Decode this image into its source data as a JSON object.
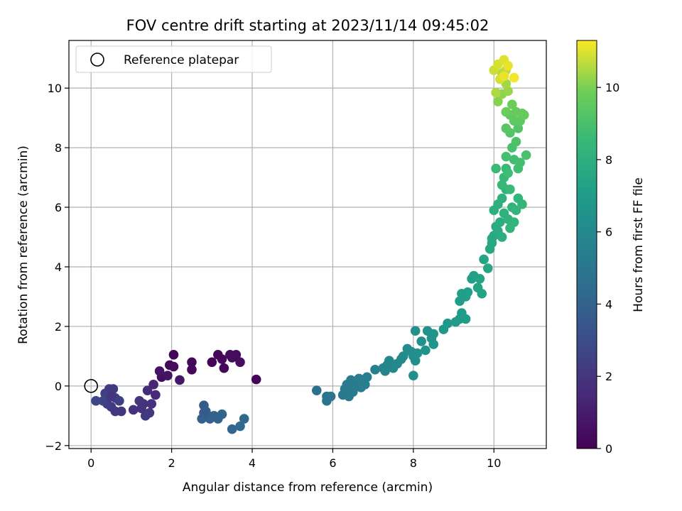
{
  "chart_data": {
    "type": "scatter",
    "title": "FOV centre drift starting at 2023/11/14 09:45:02",
    "xlabel": "Angular distance from reference (arcmin)",
    "ylabel": "Rotation from reference (arcmin)",
    "xlim": [
      -0.55,
      11.3
    ],
    "ylim": [
      -2.1,
      11.6
    ],
    "xticks": [
      0,
      2,
      4,
      6,
      8,
      10
    ],
    "yticks": [
      -2,
      0,
      2,
      4,
      6,
      8,
      10
    ],
    "grid": true,
    "colormap": "viridis",
    "colorbar": {
      "label": "Hours from first FF file",
      "range": [
        0,
        11.3
      ],
      "ticks": [
        0,
        2,
        4,
        6,
        8,
        10
      ]
    },
    "legend": {
      "placement": "top-left",
      "entries": [
        {
          "label": "Reference platepar",
          "marker": "open-circle"
        }
      ]
    },
    "reference_point": {
      "x": 0,
      "y": 0
    },
    "points": [
      {
        "x": 2.05,
        "y": 1.05,
        "c": 0.1
      },
      {
        "x": 1.95,
        "y": 0.7,
        "c": 0.3
      },
      {
        "x": 2.05,
        "y": 0.65,
        "c": 0.4
      },
      {
        "x": 1.75,
        "y": 0.3,
        "c": 0.5
      },
      {
        "x": 1.9,
        "y": 0.35,
        "c": 0.6
      },
      {
        "x": 1.7,
        "y": 0.5,
        "c": 0.7
      },
      {
        "x": 2.5,
        "y": 0.55,
        "c": 0.2
      },
      {
        "x": 2.5,
        "y": 0.8,
        "c": 0.3
      },
      {
        "x": 2.2,
        "y": 0.2,
        "c": 0.8
      },
      {
        "x": 3.0,
        "y": 0.8,
        "c": 0.15
      },
      {
        "x": 3.15,
        "y": 1.05,
        "c": 0.2
      },
      {
        "x": 3.25,
        "y": 0.9,
        "c": 0.25
      },
      {
        "x": 3.3,
        "y": 0.6,
        "c": 0.3
      },
      {
        "x": 3.45,
        "y": 1.05,
        "c": 0.35
      },
      {
        "x": 3.5,
        "y": 0.95,
        "c": 0.4
      },
      {
        "x": 3.6,
        "y": 1.05,
        "c": 0.45
      },
      {
        "x": 3.7,
        "y": 0.8,
        "c": 0.5
      },
      {
        "x": 4.1,
        "y": 0.22,
        "c": 0.1
      },
      {
        "x": 1.55,
        "y": 0.05,
        "c": 1.3
      },
      {
        "x": 1.6,
        "y": -0.3,
        "c": 1.4
      },
      {
        "x": 1.4,
        "y": -0.15,
        "c": 1.6
      },
      {
        "x": 1.5,
        "y": -0.6,
        "c": 1.8
      },
      {
        "x": 1.3,
        "y": -0.6,
        "c": 1.9
      },
      {
        "x": 1.2,
        "y": -0.5,
        "c": 2.0
      },
      {
        "x": 1.45,
        "y": -0.9,
        "c": 2.1
      },
      {
        "x": 1.35,
        "y": -1.0,
        "c": 2.2
      },
      {
        "x": 1.25,
        "y": -0.75,
        "c": 1.9
      },
      {
        "x": 1.05,
        "y": -0.8,
        "c": 1.8
      },
      {
        "x": 0.75,
        "y": -0.85,
        "c": 2.0
      },
      {
        "x": 0.6,
        "y": -0.85,
        "c": 2.1
      },
      {
        "x": 0.5,
        "y": -0.7,
        "c": 2.2
      },
      {
        "x": 0.4,
        "y": -0.6,
        "c": 2.3
      },
      {
        "x": 0.35,
        "y": -0.25,
        "c": 2.4
      },
      {
        "x": 0.45,
        "y": -0.1,
        "c": 2.3
      },
      {
        "x": 0.55,
        "y": -0.1,
        "c": 2.2
      },
      {
        "x": 0.6,
        "y": -0.4,
        "c": 2.5
      },
      {
        "x": 0.7,
        "y": -0.5,
        "c": 2.4
      },
      {
        "x": 0.3,
        "y": -0.5,
        "c": 2.6
      },
      {
        "x": 0.12,
        "y": -0.5,
        "c": 2.7
      },
      {
        "x": 0.5,
        "y": -0.35,
        "c": 2.1
      },
      {
        "x": 2.8,
        "y": -0.65,
        "c": 3.6
      },
      {
        "x": 2.85,
        "y": -0.85,
        "c": 3.7
      },
      {
        "x": 2.9,
        "y": -1.0,
        "c": 3.8
      },
      {
        "x": 2.75,
        "y": -1.1,
        "c": 3.9
      },
      {
        "x": 2.95,
        "y": -1.1,
        "c": 3.9
      },
      {
        "x": 3.05,
        "y": -1.0,
        "c": 4.0
      },
      {
        "x": 3.15,
        "y": -1.1,
        "c": 4.0
      },
      {
        "x": 3.25,
        "y": -0.95,
        "c": 4.1
      },
      {
        "x": 2.8,
        "y": -0.9,
        "c": 3.7
      },
      {
        "x": 3.5,
        "y": -1.45,
        "c": 4.2
      },
      {
        "x": 3.7,
        "y": -1.35,
        "c": 4.3
      },
      {
        "x": 3.8,
        "y": -1.1,
        "c": 4.3
      },
      {
        "x": 5.6,
        "y": -0.15,
        "c": 4.6
      },
      {
        "x": 5.85,
        "y": -0.35,
        "c": 4.9
      },
      {
        "x": 5.85,
        "y": -0.5,
        "c": 4.9
      },
      {
        "x": 5.95,
        "y": -0.35,
        "c": 5.0
      },
      {
        "x": 6.25,
        "y": -0.3,
        "c": 5.1
      },
      {
        "x": 6.3,
        "y": -0.1,
        "c": 5.2
      },
      {
        "x": 6.35,
        "y": 0.05,
        "c": 5.2
      },
      {
        "x": 6.4,
        "y": -0.35,
        "c": 5.2
      },
      {
        "x": 6.45,
        "y": 0.2,
        "c": 5.3
      },
      {
        "x": 6.5,
        "y": -0.2,
        "c": 5.3
      },
      {
        "x": 6.6,
        "y": 0.1,
        "c": 5.3
      },
      {
        "x": 6.65,
        "y": 0.25,
        "c": 5.4
      },
      {
        "x": 6.7,
        "y": -0.05,
        "c": 5.4
      },
      {
        "x": 6.75,
        "y": 0.15,
        "c": 5.4
      },
      {
        "x": 6.85,
        "y": 0.3,
        "c": 5.5
      },
      {
        "x": 6.8,
        "y": 0.05,
        "c": 5.5
      },
      {
        "x": 6.55,
        "y": 0.0,
        "c": 5.3
      },
      {
        "x": 7.05,
        "y": 0.55,
        "c": 5.6
      },
      {
        "x": 7.25,
        "y": 0.6,
        "c": 5.7
      },
      {
        "x": 7.3,
        "y": 0.5,
        "c": 5.8
      },
      {
        "x": 7.35,
        "y": 0.7,
        "c": 5.8
      },
      {
        "x": 7.4,
        "y": 0.85,
        "c": 5.9
      },
      {
        "x": 7.5,
        "y": 0.6,
        "c": 5.9
      },
      {
        "x": 7.6,
        "y": 0.75,
        "c": 6.0
      },
      {
        "x": 7.7,
        "y": 0.9,
        "c": 6.0
      },
      {
        "x": 7.75,
        "y": 1.0,
        "c": 6.1
      },
      {
        "x": 7.85,
        "y": 1.25,
        "c": 6.2
      },
      {
        "x": 7.95,
        "y": 1.15,
        "c": 6.2
      },
      {
        "x": 8.0,
        "y": 1.0,
        "c": 6.3
      },
      {
        "x": 8.0,
        "y": 0.35,
        "c": 6.3
      },
      {
        "x": 8.05,
        "y": 0.85,
        "c": 6.3
      },
      {
        "x": 8.1,
        "y": 1.1,
        "c": 6.4
      },
      {
        "x": 8.2,
        "y": 1.5,
        "c": 6.4
      },
      {
        "x": 8.3,
        "y": 1.2,
        "c": 6.5
      },
      {
        "x": 8.35,
        "y": 1.85,
        "c": 6.5
      },
      {
        "x": 8.05,
        "y": 1.85,
        "c": 6.4
      },
      {
        "x": 8.45,
        "y": 1.6,
        "c": 6.6
      },
      {
        "x": 8.5,
        "y": 1.75,
        "c": 6.6
      },
      {
        "x": 8.5,
        "y": 1.4,
        "c": 6.6
      },
      {
        "x": 8.75,
        "y": 1.9,
        "c": 6.7
      },
      {
        "x": 8.85,
        "y": 2.1,
        "c": 6.8
      },
      {
        "x": 9.05,
        "y": 2.15,
        "c": 6.8
      },
      {
        "x": 9.15,
        "y": 2.25,
        "c": 6.9
      },
      {
        "x": 9.2,
        "y": 2.45,
        "c": 6.9
      },
      {
        "x": 9.3,
        "y": 2.25,
        "c": 7.0
      },
      {
        "x": 9.15,
        "y": 2.85,
        "c": 7.0
      },
      {
        "x": 9.2,
        "y": 3.1,
        "c": 7.1
      },
      {
        "x": 9.35,
        "y": 3.15,
        "c": 7.1
      },
      {
        "x": 9.3,
        "y": 3.0,
        "c": 7.1
      },
      {
        "x": 9.45,
        "y": 3.6,
        "c": 7.2
      },
      {
        "x": 9.5,
        "y": 3.7,
        "c": 7.2
      },
      {
        "x": 9.6,
        "y": 3.3,
        "c": 7.3
      },
      {
        "x": 9.65,
        "y": 3.6,
        "c": 7.3
      },
      {
        "x": 9.7,
        "y": 3.1,
        "c": 7.3
      },
      {
        "x": 9.75,
        "y": 4.25,
        "c": 7.4
      },
      {
        "x": 9.85,
        "y": 3.95,
        "c": 7.5
      },
      {
        "x": 9.9,
        "y": 4.6,
        "c": 7.6
      },
      {
        "x": 9.95,
        "y": 4.8,
        "c": 7.6
      },
      {
        "x": 10.0,
        "y": 5.05,
        "c": 7.7
      },
      {
        "x": 10.05,
        "y": 5.35,
        "c": 7.8
      },
      {
        "x": 10.1,
        "y": 5.2,
        "c": 7.8
      },
      {
        "x": 10.15,
        "y": 5.5,
        "c": 7.9
      },
      {
        "x": 10.2,
        "y": 5.0,
        "c": 7.9
      },
      {
        "x": 9.95,
        "y": 4.95,
        "c": 7.7
      },
      {
        "x": 10.0,
        "y": 5.9,
        "c": 8.0
      },
      {
        "x": 10.1,
        "y": 6.1,
        "c": 8.0
      },
      {
        "x": 10.2,
        "y": 6.3,
        "c": 8.1
      },
      {
        "x": 10.25,
        "y": 5.8,
        "c": 8.1
      },
      {
        "x": 10.3,
        "y": 6.6,
        "c": 8.2
      },
      {
        "x": 10.35,
        "y": 5.6,
        "c": 8.2
      },
      {
        "x": 10.4,
        "y": 5.3,
        "c": 8.3
      },
      {
        "x": 10.45,
        "y": 6.0,
        "c": 8.3
      },
      {
        "x": 10.5,
        "y": 5.5,
        "c": 8.3
      },
      {
        "x": 10.55,
        "y": 5.9,
        "c": 8.4
      },
      {
        "x": 10.6,
        "y": 6.3,
        "c": 8.4
      },
      {
        "x": 10.7,
        "y": 6.1,
        "c": 8.4
      },
      {
        "x": 10.2,
        "y": 6.75,
        "c": 8.5
      },
      {
        "x": 10.25,
        "y": 7.0,
        "c": 8.5
      },
      {
        "x": 10.3,
        "y": 7.3,
        "c": 8.6
      },
      {
        "x": 10.05,
        "y": 7.3,
        "c": 8.6
      },
      {
        "x": 10.35,
        "y": 7.15,
        "c": 8.7
      },
      {
        "x": 10.4,
        "y": 6.6,
        "c": 8.6
      },
      {
        "x": 10.5,
        "y": 7.6,
        "c": 8.8
      },
      {
        "x": 10.6,
        "y": 7.3,
        "c": 8.8
      },
      {
        "x": 10.65,
        "y": 7.5,
        "c": 8.9
      },
      {
        "x": 10.3,
        "y": 7.7,
        "c": 8.9
      },
      {
        "x": 10.8,
        "y": 7.75,
        "c": 9.0
      },
      {
        "x": 10.45,
        "y": 8.0,
        "c": 9.0
      },
      {
        "x": 10.55,
        "y": 8.2,
        "c": 9.1
      },
      {
        "x": 10.4,
        "y": 8.5,
        "c": 9.3
      },
      {
        "x": 10.6,
        "y": 8.65,
        "c": 9.3
      },
      {
        "x": 10.3,
        "y": 8.65,
        "c": 9.4
      },
      {
        "x": 10.5,
        "y": 8.9,
        "c": 9.5
      },
      {
        "x": 10.65,
        "y": 8.9,
        "c": 9.5
      },
      {
        "x": 10.4,
        "y": 9.1,
        "c": 9.6
      },
      {
        "x": 10.55,
        "y": 9.2,
        "c": 9.7
      },
      {
        "x": 10.7,
        "y": 9.15,
        "c": 9.7
      },
      {
        "x": 10.75,
        "y": 9.1,
        "c": 9.7
      },
      {
        "x": 10.45,
        "y": 9.45,
        "c": 9.8
      },
      {
        "x": 10.3,
        "y": 9.2,
        "c": 9.8
      },
      {
        "x": 10.1,
        "y": 9.55,
        "c": 10.1
      },
      {
        "x": 10.2,
        "y": 9.8,
        "c": 10.2
      },
      {
        "x": 10.35,
        "y": 9.9,
        "c": 10.3
      },
      {
        "x": 10.3,
        "y": 10.15,
        "c": 10.4
      },
      {
        "x": 10.05,
        "y": 9.85,
        "c": 10.5
      },
      {
        "x": 10.2,
        "y": 10.5,
        "c": 10.6
      },
      {
        "x": 10.3,
        "y": 10.6,
        "c": 10.7
      },
      {
        "x": 10.0,
        "y": 10.6,
        "c": 10.8
      },
      {
        "x": 10.1,
        "y": 10.8,
        "c": 10.9
      },
      {
        "x": 10.15,
        "y": 10.3,
        "c": 10.9
      },
      {
        "x": 10.25,
        "y": 10.95,
        "c": 11.0
      },
      {
        "x": 10.35,
        "y": 10.75,
        "c": 11.1
      },
      {
        "x": 10.5,
        "y": 10.35,
        "c": 11.2
      },
      {
        "x": 10.25,
        "y": 10.4,
        "c": 11.1
      }
    ]
  }
}
